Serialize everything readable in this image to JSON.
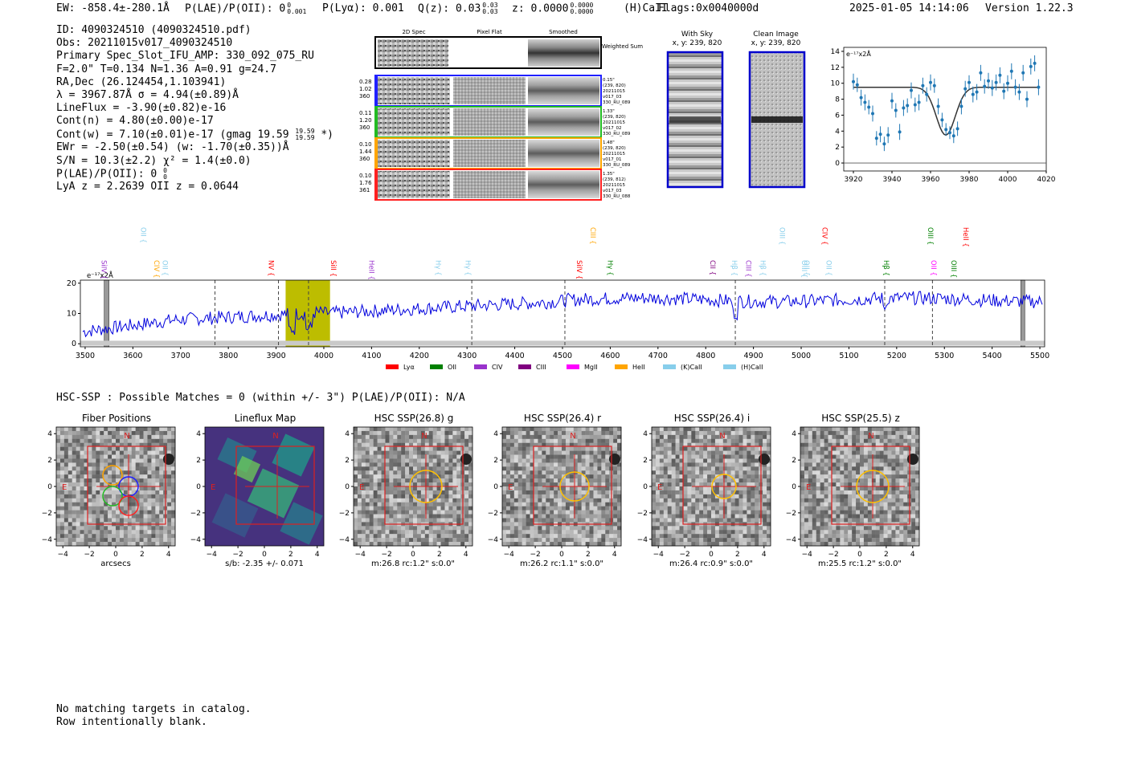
{
  "header": {
    "ew": "EW: -858.4±-280.1Å",
    "plae": "P(LAE)/P(OII): 0",
    "plae_sup": "0",
    "plae_sub": "0.001",
    "plya": "P(Lyα): 0.001",
    "qz": "Q(z): 0.03",
    "qz_sup": "0.03",
    "qz_sub": "0.03",
    "z": "z: 0.0000",
    "z_sup": "0.0000",
    "z_sub": "0.0000",
    "line": "(H)CaII",
    "flags": "Flags:0x0040000d",
    "datetime": "2025-01-05 14:14:06",
    "version": "Version 1.22.3"
  },
  "info": {
    "id": "ID: 4090324510 (4090324510.pdf)",
    "obs": "Obs: 20211015v017_4090324510",
    "primary": "Primary Spec_Slot_IFU_AMP: 330_092_075_RU",
    "params": "F=2.0\"  T=0.134  N=1.36  A=0.91  g=24.7",
    "radec": "RA,Dec (26.124454,1.103941)",
    "lambda": "λ = 3967.87Å  σ = 4.94(±0.89)Å",
    "lineflux": "LineFlux = -3.90(±0.82)e-16",
    "contn": "Cont(n) = 4.80(±0.00)e-17",
    "contw": "Cont(w) = 7.10(±0.01)e-17 (gmag 19.59",
    "contw_sup": "19.59",
    "contw_sub": "19.59",
    "contw_end": " *)",
    "ewr": "EWr = -2.50(±0.54) (w: -1.70(±0.35))Å",
    "sn": "S/N = 10.3(±2.2)  χ² = 1.4(±0.0)",
    "plae": "P(LAE)/P(OII): 0",
    "plae_sup": "0",
    "plae_sub": "0",
    "lyaz": "LyA z = 2.2639  OII z = 0.0644"
  },
  "cutouts": {
    "col_titles": [
      "2D Spec",
      "Pixel Flat",
      "Smoothed"
    ],
    "weighted": "Weighted Sum",
    "rows": [
      {
        "left": [
          "0.28",
          "1.02",
          "360"
        ],
        "right": [
          "0.15\"",
          "(239, 820)",
          "20211015",
          "v017_03",
          "330_RU_089"
        ],
        "color": "#2020ff"
      },
      {
        "left": [
          "0.11",
          "1.20",
          "360"
        ],
        "right": [
          "1.33\"",
          "(239, 820)",
          "20211015",
          "v017_02",
          "330_RU_089"
        ],
        "color": "#22bb22"
      },
      {
        "left": [
          "0.10",
          "1.44",
          "360"
        ],
        "right": [
          "1.48\"",
          "(239, 820)",
          "20211015",
          "v017_01",
          "330_RU_089"
        ],
        "color": "#ffa500"
      },
      {
        "left": [
          "0.10",
          "1.76",
          "361"
        ],
        "right": [
          "1.35\"",
          "(239, 812)",
          "20211015",
          "v017_03",
          "330_RU_088"
        ],
        "color": "#ff2020"
      }
    ]
  },
  "sky": {
    "with_sky": "With Sky",
    "with_sky_xy": "x, y: 239, 820",
    "clean": "Clean Image",
    "clean_xy": "x, y: 239, 820"
  },
  "chart_data": [
    {
      "type": "scatter",
      "title": "",
      "ylabel": "e⁻¹⁷x2Å",
      "xlim": [
        3915,
        4020
      ],
      "ylim": [
        -1,
        14.5
      ],
      "xticks": [
        3920,
        3940,
        3960,
        3980,
        4000,
        4020
      ],
      "yticks": [
        0,
        2,
        4,
        6,
        8,
        10,
        12,
        14
      ],
      "x": [
        3920,
        3922,
        3924,
        3926,
        3928,
        3930,
        3932,
        3934,
        3936,
        3938,
        3940,
        3942,
        3944,
        3946,
        3948,
        3950,
        3952,
        3954,
        3956,
        3958,
        3960,
        3962,
        3964,
        3966,
        3968,
        3970,
        3972,
        3974,
        3976,
        3978,
        3980,
        3982,
        3984,
        3986,
        3988,
        3990,
        3992,
        3994,
        3996,
        3998,
        4000,
        4002,
        4004,
        4006,
        4008,
        4010,
        4012,
        4014,
        4016
      ],
      "y": [
        10.2,
        9.8,
        8.2,
        7.6,
        7.0,
        6.2,
        3.1,
        3.6,
        2.4,
        3.5,
        7.8,
        6.6,
        3.9,
        6.9,
        7.2,
        9.1,
        7.3,
        7.6,
        9.7,
        8.6,
        10.1,
        9.7,
        7.1,
        5.4,
        4.2,
        3.8,
        3.4,
        4.3,
        7.1,
        9.3,
        10.1,
        8.6,
        8.9,
        11.3,
        9.6,
        10.3,
        9.4,
        10.1,
        11.0,
        9.0,
        10.0,
        11.5,
        9.5,
        8.9,
        11.3,
        8.0,
        12.1,
        12.5,
        9.5
      ],
      "err": [
        1.0,
        0.9,
        1.0,
        1.0,
        0.9,
        1.0,
        0.9,
        1.0,
        0.9,
        1.0,
        1.0,
        0.9,
        1.0,
        1.0,
        0.9,
        1.0,
        0.9,
        1.0,
        1.0,
        0.9,
        1.0,
        0.9,
        1.0,
        0.9,
        0.8,
        0.8,
        0.9,
        0.9,
        1.0,
        1.0,
        0.9,
        1.0,
        1.0,
        1.0,
        0.9,
        1.0,
        1.0,
        1.0,
        1.0,
        1.0,
        1.0,
        1.0,
        1.0,
        1.0,
        1.0,
        1.0,
        1.0,
        1.0,
        1.0
      ],
      "model": {
        "baseline": 9.5,
        "center": 3967.9,
        "sigma": 4.94,
        "depth": 6.0
      }
    },
    {
      "type": "line",
      "ylabel": "e⁻¹⁷x2Å",
      "xlim": [
        3490,
        5510
      ],
      "ylim": [
        -1,
        21
      ],
      "xticks": [
        3500,
        3600,
        3700,
        3800,
        3900,
        4000,
        4100,
        4200,
        4300,
        4400,
        4500,
        4600,
        4700,
        4800,
        4900,
        5000,
        5100,
        5200,
        5300,
        5400,
        5500
      ],
      "yticks": [
        0,
        10,
        20
      ],
      "highlight": [
        3920,
        4013
      ],
      "dashed": [
        3772,
        3905,
        3968,
        4310,
        4505,
        4862,
        5175,
        5275
      ],
      "hatched": [
        3540,
        3550,
        5460,
        5465
      ],
      "legend": [
        "Lyα",
        "OII",
        "CIV",
        "CIII",
        "MgII",
        "HeII",
        "(K)CaII",
        "(H)CaII"
      ],
      "legend_colors": [
        "#ff0000",
        "#008000",
        "#9932cc",
        "#800080",
        "#ff00ff",
        "#ffa500",
        "#87ceeb",
        "#87ceeb"
      ],
      "lines": [
        {
          "x": 3540,
          "label": "SiIV",
          "color": "#9932cc"
        },
        {
          "x": 3622,
          "label": "OII",
          "color": "#87ceeb"
        },
        {
          "x": 3650,
          "label": "CIV",
          "color": "#ffa500"
        },
        {
          "x": 3668,
          "label": "OII",
          "color": "#87ceeb"
        },
        {
          "x": 3890,
          "label": "NV",
          "color": "#ff0000"
        },
        {
          "x": 4020,
          "label": "SiII",
          "color": "#ff0000"
        },
        {
          "x": 4100,
          "label": "HeII",
          "color": "#9932cc"
        },
        {
          "x": 4240,
          "label": "Hγ",
          "color": "#87ceeb"
        },
        {
          "x": 4302,
          "label": "Hγ",
          "color": "#87ceeb"
        },
        {
          "x": 4535,
          "label": "SiIV",
          "color": "#ff0000"
        },
        {
          "x": 4564,
          "label": "CIII",
          "color": "#ffa500"
        },
        {
          "x": 4600,
          "label": "Hγ",
          "color": "#008000"
        },
        {
          "x": 4815,
          "label": "CII",
          "color": "#800080"
        },
        {
          "x": 4860,
          "label": "Hβ",
          "color": "#87ceeb"
        },
        {
          "x": 4890,
          "label": "CIII",
          "color": "#9932cc"
        },
        {
          "x": 4920,
          "label": "Hβ",
          "color": "#87ceeb"
        },
        {
          "x": 4960,
          "label": "OIII",
          "color": "#87ceeb"
        },
        {
          "x": 5007,
          "label": "OIII",
          "color": "#87ceeb"
        },
        {
          "x": 5012,
          "label": "OII",
          "color": "#87ceeb"
        },
        {
          "x": 5050,
          "label": "CIV",
          "color": "#ff0000"
        },
        {
          "x": 5058,
          "label": "OII",
          "color": "#87ceeb"
        },
        {
          "x": 5178,
          "label": "Hβ",
          "color": "#008000"
        },
        {
          "x": 5271,
          "label": "OIII",
          "color": "#008000"
        },
        {
          "x": 5278,
          "label": "OII",
          "color": "#ff00ff"
        },
        {
          "x": 5320,
          "label": "OIII",
          "color": "#008000"
        },
        {
          "x": 5345,
          "label": "HeII",
          "color": "#ff0000"
        }
      ]
    }
  ],
  "hsc": {
    "summary": "HSC-SSP : Possible Matches = 0 (within +/- 3\")  P(LAE)/P(OII): N/A",
    "compass_n": "N",
    "compass_e": "E",
    "axis_ticks": [
      "−4",
      "−2",
      "0",
      "2",
      "4"
    ],
    "panels": [
      {
        "title": "Fiber Positions",
        "caption": "arcsecs"
      },
      {
        "title": "Lineflux Map",
        "caption": "s/b: -2.35 +/- 0.071"
      },
      {
        "title": "HSC SSP(26.8) g",
        "caption": "m:26.8 rc:1.2\"  s:0.0\""
      },
      {
        "title": "HSC SSP(26.4) r",
        "caption": "m:26.2 rc:1.1\"  s:0.0\""
      },
      {
        "title": "HSC SSP(26.4) i",
        "caption": "m:26.4 rc:0.9\"  s:0.0\""
      },
      {
        "title": "HSC SSP(25.5) z",
        "caption": "m:25.5 rc:1.2\"  s:0.0\""
      }
    ]
  },
  "footer": {
    "line1": "No matching targets in catalog.",
    "line2": "Row intentionally blank."
  }
}
